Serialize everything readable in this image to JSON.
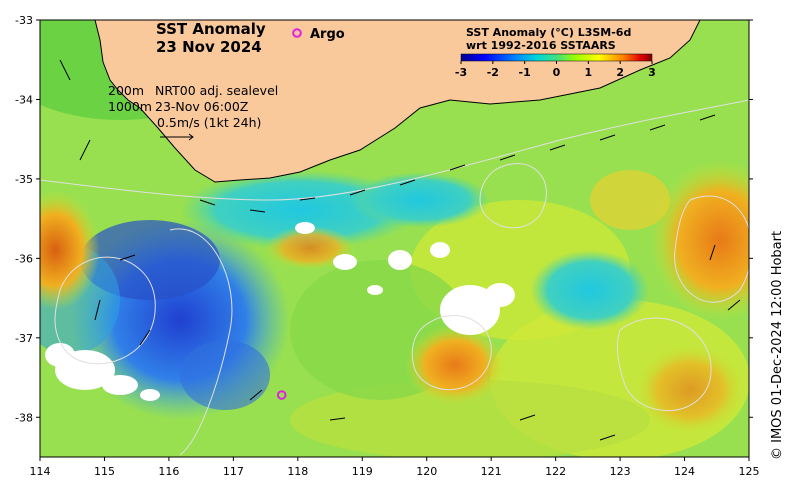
{
  "title": {
    "line1": "SST Anomaly",
    "line2": "23 Nov 2024"
  },
  "argo_legend": {
    "label": "Argo",
    "marker_color": "#e020e0"
  },
  "overlay_text": {
    "depth_200": "200m",
    "depth_1000": "1000m",
    "sealevel": "NRT00 adj. sealevel",
    "timestamp": "23-Nov 06:00Z",
    "scale": "0.5m/s (1kt 24h)"
  },
  "colorbar": {
    "title_line1": "SST Anomaly (°C) L3SM-6d",
    "title_line2": "wrt 1992-2016 SSTAARS",
    "ticks": [
      "-3",
      "-2",
      "-1",
      "0",
      "1",
      "2",
      "3"
    ],
    "colors": [
      "#00008f",
      "#0000ff",
      "#0080ff",
      "#00ffff",
      "#40e080",
      "#80ff00",
      "#ffff00",
      "#ff8000",
      "#e00000",
      "#800000"
    ]
  },
  "axes": {
    "x_ticks": [
      "114",
      "115",
      "116",
      "117",
      "118",
      "119",
      "120",
      "121",
      "122",
      "123",
      "124",
      "125"
    ],
    "y_ticks": [
      "-33",
      "-34",
      "-35",
      "-36",
      "-37",
      "-38"
    ]
  },
  "credit": "© IMOS 01-Dec-2024 12:00 Hobart",
  "colors": {
    "land": "#f9c89b",
    "no_data": "#ffffff",
    "contour": "#d8d8d8"
  },
  "map_data": {
    "lon_range": [
      114,
      125
    ],
    "lat_range": [
      -38.5,
      -33
    ],
    "argo_floats": [
      {
        "lon": 117.75,
        "lat": -37.72
      }
    ]
  }
}
